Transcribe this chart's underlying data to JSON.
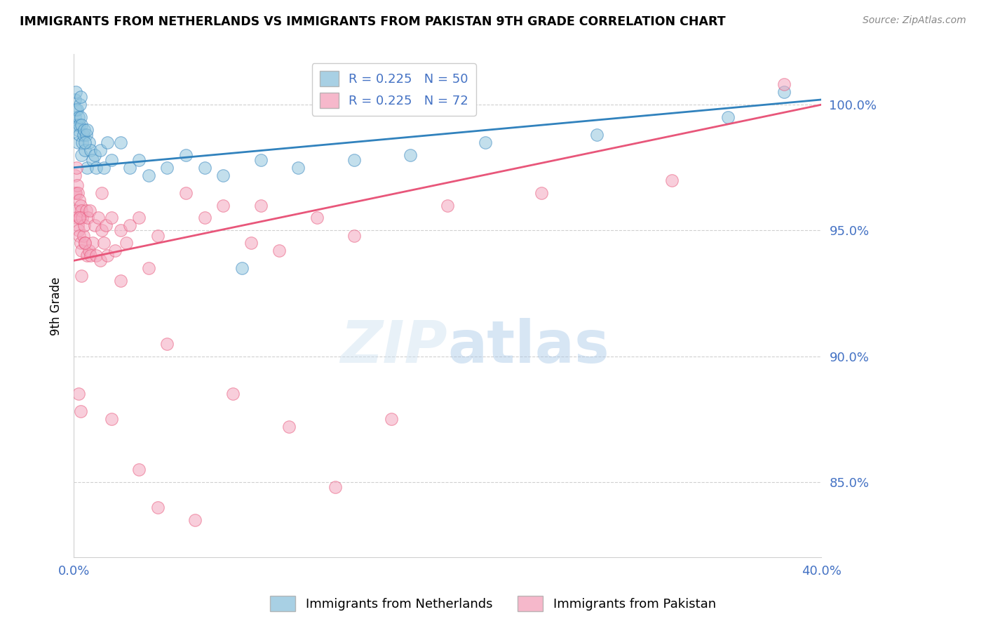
{
  "title": "IMMIGRANTS FROM NETHERLANDS VS IMMIGRANTS FROM PAKISTAN 9TH GRADE CORRELATION CHART",
  "source": "Source: ZipAtlas.com",
  "ylabel": "9th Grade",
  "xlim": [
    0.0,
    40.0
  ],
  "ylim": [
    82.0,
    102.0
  ],
  "yticks": [
    85.0,
    90.0,
    95.0,
    100.0
  ],
  "ytick_labels": [
    "85.0%",
    "90.0%",
    "95.0%",
    "100.0%"
  ],
  "color_netherlands": "#92c5de",
  "color_pakistan": "#f4a6be",
  "color_netherlands_line": "#3182bd",
  "color_pakistan_line": "#e8567a",
  "color_axis_labels": "#4472c4",
  "nl_R": 0.225,
  "nl_N": 50,
  "pk_R": 0.225,
  "pk_N": 72,
  "netherlands_x": [
    0.05,
    0.08,
    0.1,
    0.12,
    0.15,
    0.18,
    0.2,
    0.22,
    0.25,
    0.28,
    0.3,
    0.32,
    0.35,
    0.38,
    0.4,
    0.42,
    0.45,
    0.5,
    0.55,
    0.6,
    0.65,
    0.7,
    0.8,
    0.9,
    1.0,
    1.1,
    1.2,
    1.4,
    1.6,
    1.8,
    2.0,
    2.5,
    3.0,
    3.5,
    4.0,
    5.0,
    6.0,
    7.0,
    8.0,
    9.0,
    10.0,
    12.0,
    15.0,
    18.0,
    22.0,
    28.0,
    35.0,
    38.0,
    0.6,
    0.7
  ],
  "netherlands_y": [
    99.5,
    100.2,
    100.5,
    99.8,
    99.2,
    99.8,
    98.5,
    99.0,
    99.5,
    99.2,
    98.8,
    100.0,
    100.3,
    99.5,
    98.0,
    99.2,
    98.5,
    98.8,
    99.0,
    98.2,
    98.8,
    97.5,
    98.5,
    98.2,
    97.8,
    98.0,
    97.5,
    98.2,
    97.5,
    98.5,
    97.8,
    98.5,
    97.5,
    97.8,
    97.2,
    97.5,
    98.0,
    97.5,
    97.2,
    93.5,
    97.8,
    97.5,
    97.8,
    98.0,
    98.5,
    98.8,
    99.5,
    100.5,
    98.5,
    99.0
  ],
  "pakistan_x": [
    0.05,
    0.08,
    0.1,
    0.12,
    0.15,
    0.18,
    0.2,
    0.22,
    0.25,
    0.28,
    0.3,
    0.32,
    0.35,
    0.38,
    0.4,
    0.42,
    0.45,
    0.5,
    0.55,
    0.6,
    0.65,
    0.7,
    0.75,
    0.8,
    0.85,
    0.9,
    1.0,
    1.1,
    1.2,
    1.3,
    1.4,
    1.5,
    1.6,
    1.7,
    1.8,
    2.0,
    2.2,
    2.5,
    2.8,
    3.0,
    3.5,
    4.0,
    4.5,
    5.0,
    6.0,
    7.0,
    8.0,
    9.5,
    10.0,
    11.0,
    13.0,
    15.0,
    17.0,
    20.0,
    25.0,
    32.0,
    38.0,
    0.15,
    0.25,
    0.35,
    1.5,
    2.5,
    3.5,
    4.5,
    6.5,
    8.5,
    11.5,
    14.0,
    0.3,
    0.4,
    2.0,
    0.6
  ],
  "pakistan_y": [
    96.5,
    97.2,
    95.8,
    96.5,
    95.5,
    96.8,
    95.2,
    96.5,
    95.0,
    96.2,
    94.8,
    95.5,
    96.0,
    94.5,
    95.8,
    94.2,
    95.5,
    94.8,
    95.2,
    94.5,
    95.8,
    94.0,
    95.5,
    94.2,
    95.8,
    94.0,
    94.5,
    95.2,
    94.0,
    95.5,
    93.8,
    95.0,
    94.5,
    95.2,
    94.0,
    95.5,
    94.2,
    95.0,
    94.5,
    95.2,
    95.5,
    93.5,
    94.8,
    90.5,
    96.5,
    95.5,
    96.0,
    94.5,
    96.0,
    94.2,
    95.5,
    94.8,
    87.5,
    96.0,
    96.5,
    97.0,
    100.8,
    97.5,
    88.5,
    87.8,
    96.5,
    93.0,
    85.5,
    84.0,
    83.5,
    88.5,
    87.2,
    84.8,
    95.5,
    93.2,
    87.5,
    94.5
  ]
}
